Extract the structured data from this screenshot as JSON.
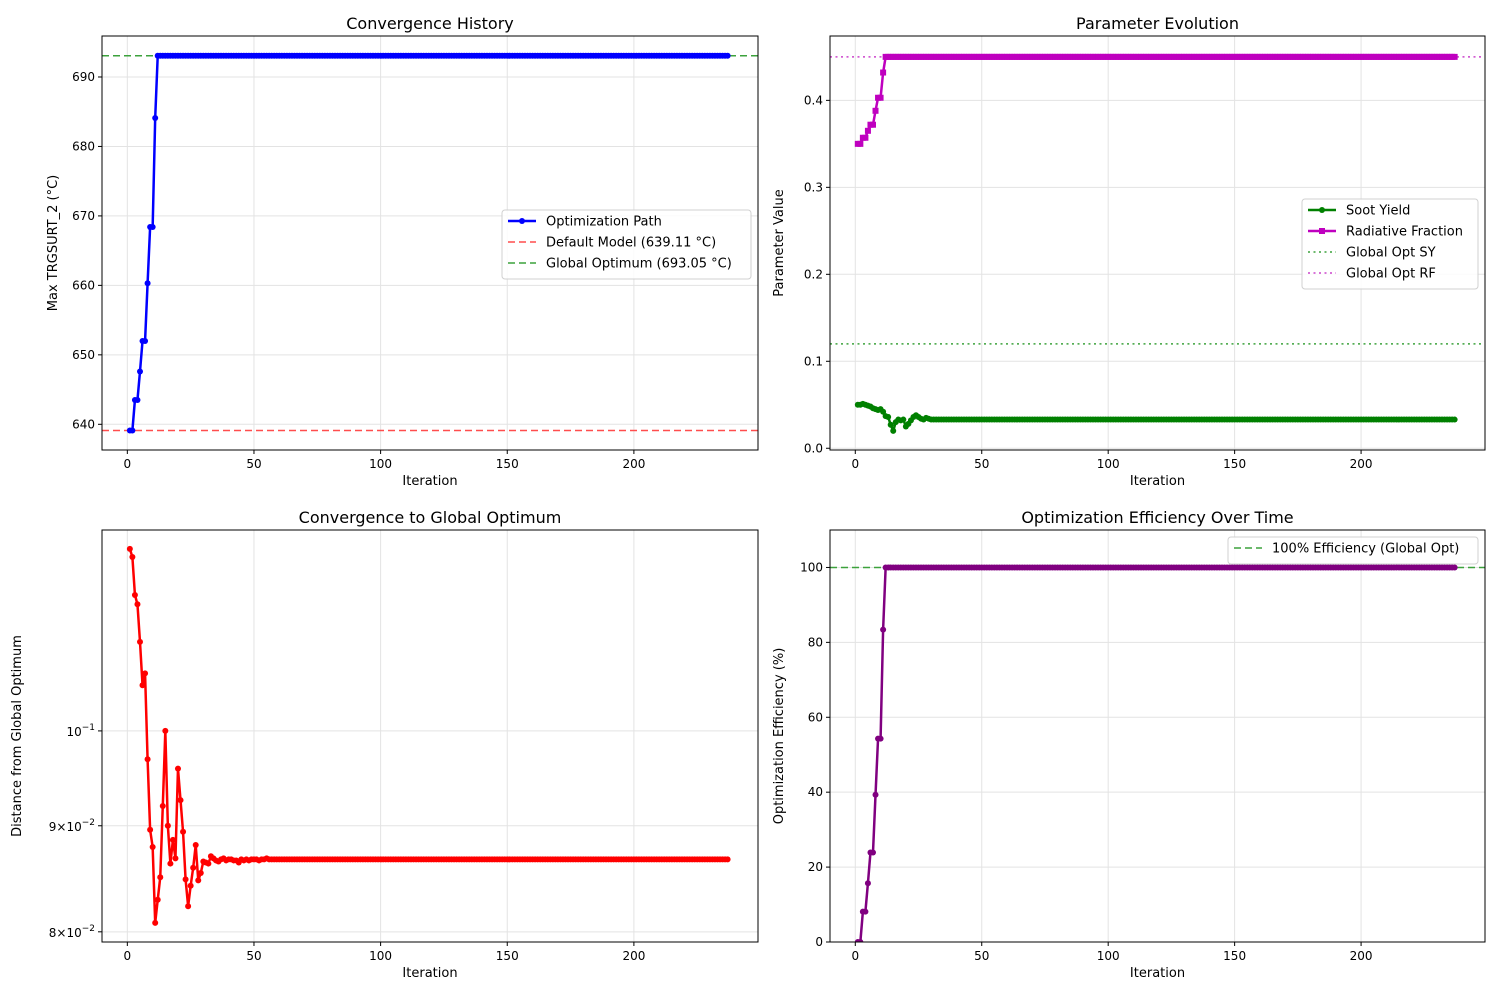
{
  "chart_data": [
    {
      "type": "line",
      "title": "Convergence History",
      "xlabel": "Iteration",
      "ylabel": "Max TRGSURT_2 (°C)",
      "xlim": [
        -10,
        249
      ],
      "ylim": [
        636.3,
        695.9
      ],
      "xticks": [
        0,
        50,
        100,
        150,
        200
      ],
      "yticks": [
        640,
        650,
        660,
        670,
        680,
        690
      ],
      "grid": true,
      "legend_position": "center-right",
      "iterations": 237,
      "series": [
        {
          "name": "Optimization Path",
          "color": "#0000ff",
          "marker": "circle",
          "style": "solid",
          "values": [
            639.11,
            639.11,
            643.5,
            643.5,
            647.6,
            652.0,
            652.0,
            660.3,
            668.4,
            668.4,
            684.1
          ],
          "then_constant": 693.05
        }
      ],
      "hlines": [
        {
          "name": "Default Model (639.11 °C)",
          "value": 639.11,
          "color": "#ff4d4d",
          "style": "dashed"
        },
        {
          "name": "Global Optimum (693.05 °C)",
          "value": 693.05,
          "color": "#3ca23c",
          "style": "dashed"
        }
      ]
    },
    {
      "type": "line",
      "title": "Parameter Evolution",
      "xlabel": "Iteration",
      "ylabel": "Parameter Value",
      "xlim": [
        -10,
        249
      ],
      "ylim": [
        -0.002,
        0.474
      ],
      "xticks": [
        0,
        50,
        100,
        150,
        200
      ],
      "yticks": [
        0.0,
        0.1,
        0.2,
        0.3,
        0.4
      ],
      "ytick_labels": [
        "0.0",
        "0.1",
        "0.2",
        "0.3",
        "0.4"
      ],
      "grid": true,
      "legend_position": "center-right",
      "iterations": 237,
      "series": [
        {
          "name": "Soot Yield",
          "color": "#008000",
          "marker": "circle",
          "style": "solid",
          "values": [
            0.05,
            0.05,
            0.051,
            0.05,
            0.049,
            0.048,
            0.046,
            0.045,
            0.044,
            0.045,
            0.042,
            0.037,
            0.036,
            0.027,
            0.02,
            0.03,
            0.033,
            0.032,
            0.033,
            0.025,
            0.028,
            0.032,
            0.036,
            0.038,
            0.036,
            0.034,
            0.033,
            0.035,
            0.034,
            0.033
          ],
          "then_constant": 0.033
        },
        {
          "name": "Radiative Fraction",
          "color": "#bf00bf",
          "marker": "square",
          "style": "solid",
          "values": [
            0.35,
            0.35,
            0.357,
            0.357,
            0.365,
            0.372,
            0.372,
            0.388,
            0.403,
            0.403,
            0.432
          ],
          "then_constant": 0.45
        }
      ],
      "hlines": [
        {
          "name": "Global Opt SY",
          "value": 0.12,
          "color": "#3ca23c",
          "style": "dotted"
        },
        {
          "name": "Global Opt RF",
          "value": 0.45,
          "color": "#cc44cc",
          "style": "dotted"
        }
      ]
    },
    {
      "type": "line",
      "title": "Convergence to Global Optimum",
      "xlabel": "Iteration",
      "ylabel": "Distance from Global Optimum",
      "yscale": "log",
      "xlim": [
        -10,
        249
      ],
      "ylim": [
        0.0791,
        0.125
      ],
      "xticks": [
        0,
        50,
        100,
        150,
        200
      ],
      "yticks": [
        0.1,
        0.09,
        0.08
      ],
      "ytick_labels": [
        [
          "10",
          "−1"
        ],
        [
          "9×10",
          "−2"
        ],
        [
          "8×10",
          "−2"
        ]
      ],
      "grid": true,
      "iterations": 237,
      "series": [
        {
          "color": "#ff0000",
          "marker": "circle",
          "style": "solid",
          "values": [
            0.1224,
            0.1213,
            0.1163,
            0.1151,
            0.1104,
            0.1052,
            0.1066,
            0.0969,
            0.0896,
            0.0879,
            0.0808,
            0.0829,
            0.085,
            0.092,
            0.1,
            0.09,
            0.0863,
            0.0886,
            0.0868,
            0.0959,
            0.0926,
            0.0894,
            0.0848,
            0.0823,
            0.0842,
            0.0859,
            0.0881,
            0.0847,
            0.0854,
            0.0865,
            0.0864,
            0.0863,
            0.087,
            0.0868,
            0.0866,
            0.0865,
            0.0867,
            0.0868,
            0.0866,
            0.0867,
            0.0867,
            0.0866,
            0.0866,
            0.0864,
            0.0867,
            0.0866,
            0.0867,
            0.0866,
            0.0867,
            0.0867,
            0.0867,
            0.0866,
            0.0867,
            0.0867,
            0.0868
          ],
          "then_constant": 0.0867
        }
      ]
    },
    {
      "type": "line",
      "title": "Optimization Efficiency Over Time",
      "xlabel": "Iteration",
      "ylabel": "Optimization Efficiency (%)",
      "xlim": [
        -10,
        249
      ],
      "ylim": [
        0,
        110
      ],
      "xticks": [
        0,
        50,
        100,
        150,
        200
      ],
      "yticks": [
        0,
        20,
        40,
        60,
        80,
        100
      ],
      "grid": true,
      "legend_position": "top-right",
      "iterations": 237,
      "series": [
        {
          "color": "#800080",
          "marker": "circle",
          "style": "solid",
          "values": [
            0,
            0,
            8.1,
            8.1,
            15.7,
            23.9,
            23.9,
            39.3,
            54.3,
            54.3,
            83.4
          ],
          "then_constant": 100
        }
      ],
      "hlines": [
        {
          "name": "100% Efficiency (Global Opt)",
          "value": 100,
          "color": "#3ca23c",
          "style": "dashed"
        }
      ]
    }
  ]
}
